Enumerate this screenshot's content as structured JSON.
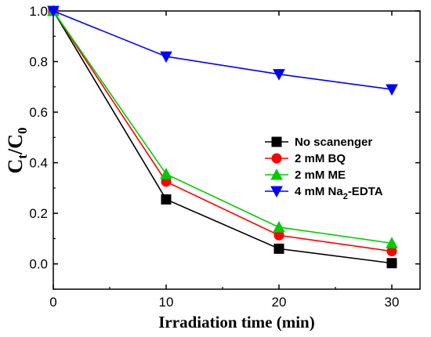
{
  "chart_data": {
    "type": "line",
    "xlabel": "Irradiation time (min)",
    "ylabel": {
      "main": "C",
      "sub1": "t",
      "sep": "/C",
      "sub2": "0"
    },
    "xlim": [
      0,
      32.5
    ],
    "ylim": [
      -0.1,
      1.0
    ],
    "x_ticks": [
      0,
      10,
      20,
      30
    ],
    "x_tick_labels": [
      "0",
      "10",
      "20",
      "30"
    ],
    "y_ticks": [
      0.0,
      0.2,
      0.4,
      0.6,
      0.8,
      1.0
    ],
    "y_tick_labels": [
      "0.0",
      "0.2",
      "0.4",
      "0.6",
      "0.8",
      "1.0"
    ],
    "grid": false,
    "legend_position": "center-right",
    "x": [
      0,
      10,
      20,
      30
    ],
    "series": [
      {
        "name": "No scanenger",
        "color": "#000000",
        "marker": "square",
        "values": [
          1.0,
          0.255,
          0.06,
          0.003
        ]
      },
      {
        "name": "2 mM BQ",
        "color": "#ff0000",
        "marker": "circle",
        "values": [
          1.0,
          0.325,
          0.113,
          0.05
        ]
      },
      {
        "name": "2 mM ME",
        "color": "#00cc00",
        "marker": "triangle-up",
        "values": [
          1.0,
          0.355,
          0.145,
          0.082
        ]
      },
      {
        "name": "4 mM Na2-EDTA",
        "name_parts": {
          "pre": "4 mM Na",
          "sub": "2",
          "post": "-EDTA"
        },
        "color": "#0000ff",
        "marker": "triangle-down",
        "values": [
          1.0,
          0.82,
          0.75,
          0.69
        ]
      }
    ]
  }
}
